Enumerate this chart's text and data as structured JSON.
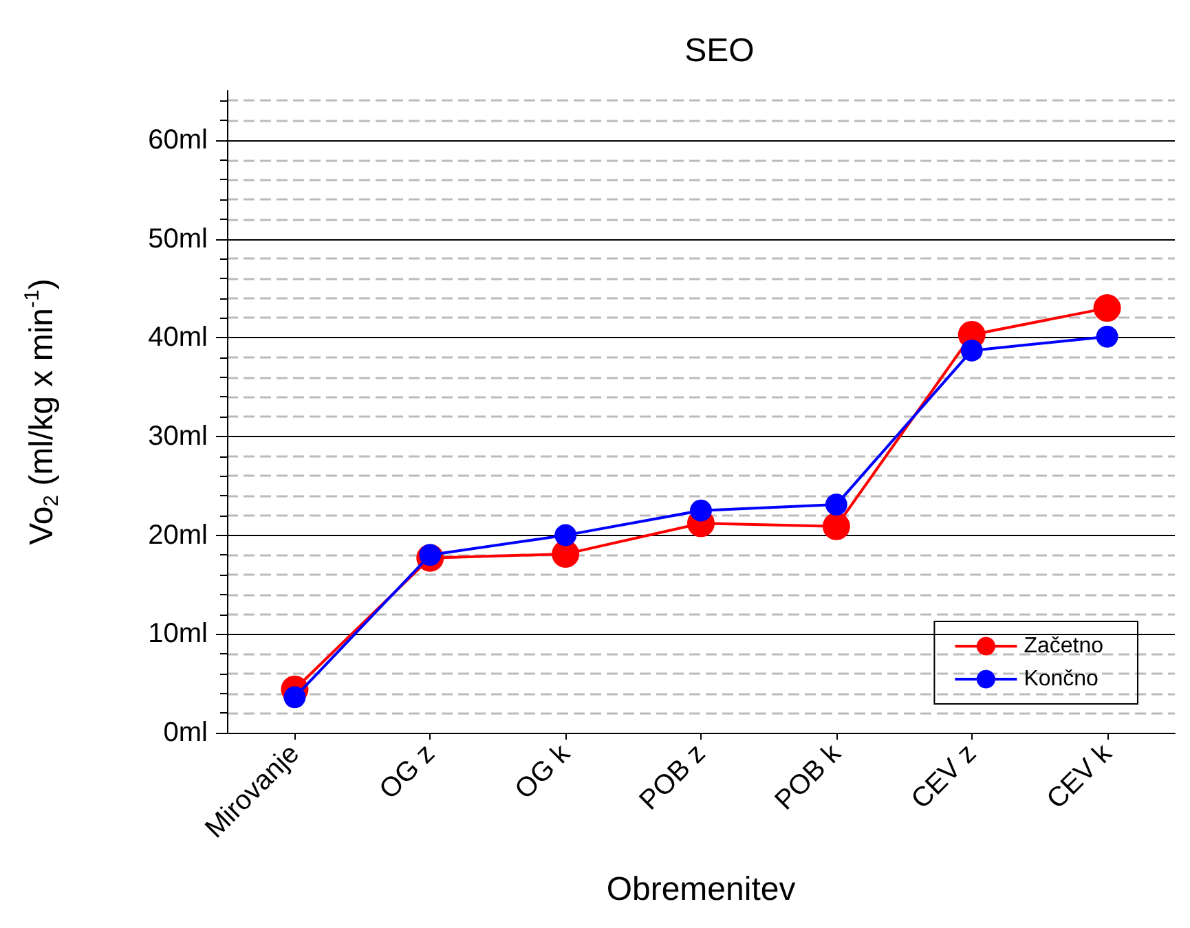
{
  "chart_data": {
    "type": "line",
    "title": "SEO",
    "xlabel": "Obremenitev",
    "ylabel": "Vo$_{2}$ (ml/kg x min$^{-1}$)",
    "categories": [
      "Mirovanje",
      "OG z",
      "OG k",
      "POB z",
      "POB k",
      "CEV z",
      "CEV k"
    ],
    "series": [
      {
        "name": "Začetno",
        "color": "#ff0000",
        "values": [
          4.4,
          17.7,
          18.1,
          21.2,
          20.9,
          40.3,
          43.0
        ]
      },
      {
        "name": "Končno",
        "color": "#0000ff",
        "values": [
          3.6,
          18.0,
          20.0,
          22.5,
          23.1,
          38.7,
          40.1
        ]
      }
    ],
    "ylim": [
      0,
      65
    ],
    "yticks": [
      {
        "value": 0,
        "label": "0ml"
      },
      {
        "value": 10,
        "label": "10ml"
      },
      {
        "value": 20,
        "label": "20ml"
      },
      {
        "value": 30,
        "label": "30ml"
      },
      {
        "value": 40,
        "label": "40ml"
      },
      {
        "value": 50,
        "label": "50ml"
      },
      {
        "value": 60,
        "label": "60ml"
      }
    ],
    "grid": true,
    "legend": "bottom right",
    "marker": "circle",
    "line_style": "solid"
  }
}
